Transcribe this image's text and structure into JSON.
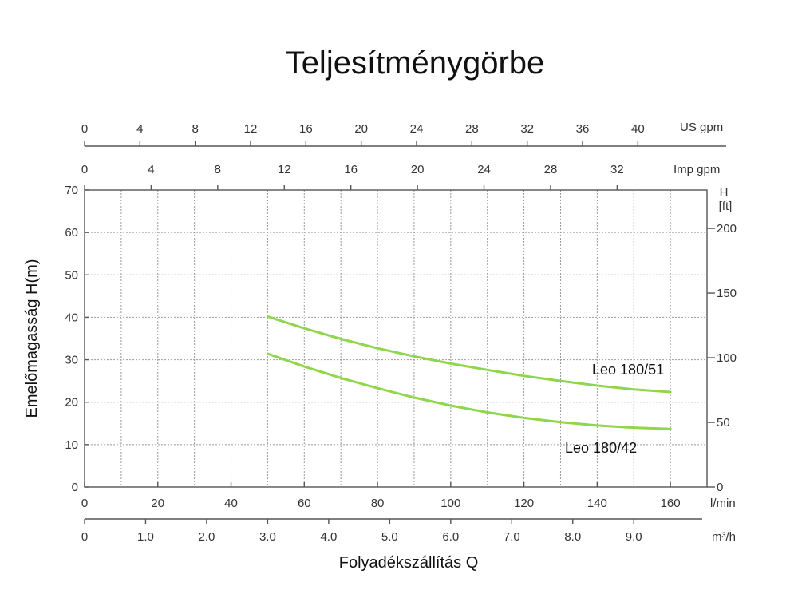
{
  "chart_data": {
    "type": "line",
    "title": "Teljesítménygörbe",
    "xlabel": "Folyadékszállítás Q",
    "ylabel": "Emelőmagasság H(m)",
    "x_unit": "l/min",
    "xlim": [
      0,
      170
    ],
    "ylim": [
      0,
      70
    ],
    "x_ticks": [
      0,
      20,
      40,
      60,
      80,
      100,
      120,
      140,
      160
    ],
    "y_ticks": [
      0,
      10,
      20,
      30,
      40,
      50,
      60,
      70
    ],
    "grid": true,
    "series_color": "#8fd64a",
    "series": [
      {
        "name": "Leo 180/51",
        "x": [
          50,
          60,
          70,
          80,
          90,
          100,
          110,
          120,
          130,
          140,
          150,
          160
        ],
        "y": [
          40.2,
          37.4,
          34.9,
          32.7,
          30.8,
          29.1,
          27.6,
          26.2,
          25.0,
          23.9,
          23.0,
          22.4
        ]
      },
      {
        "name": "Leo 180/42",
        "x": [
          50,
          60,
          70,
          80,
          90,
          100,
          110,
          120,
          130,
          140,
          150,
          160
        ],
        "y": [
          31.4,
          28.4,
          25.7,
          23.3,
          21.1,
          19.2,
          17.6,
          16.3,
          15.3,
          14.5,
          14.0,
          13.7
        ]
      }
    ],
    "secondary_axes": {
      "us_gpm": {
        "unit": "US gpm",
        "max": 45,
        "ticks": [
          "0",
          "4",
          "8",
          "12",
          "16",
          "20",
          "24",
          "28",
          "32",
          "36",
          "40"
        ]
      },
      "imp_gpm": {
        "unit": "Imp gpm",
        "max": 37.4,
        "ticks": [
          "0",
          "4",
          "8",
          "12",
          "16",
          "20",
          "24",
          "28",
          "32"
        ]
      },
      "head_ft": {
        "unit_top": "H",
        "unit_bottom": "[ft]",
        "max": 229.66,
        "ticks": [
          "0",
          "50",
          "100",
          "150",
          "200"
        ]
      },
      "m3h": {
        "unit": "m³/h",
        "max": 10.2,
        "ticks": [
          "0",
          "1.0",
          "2.0",
          "3.0",
          "4.0",
          "5.0",
          "6.0",
          "7.0",
          "8.0",
          "9.0"
        ]
      }
    }
  }
}
